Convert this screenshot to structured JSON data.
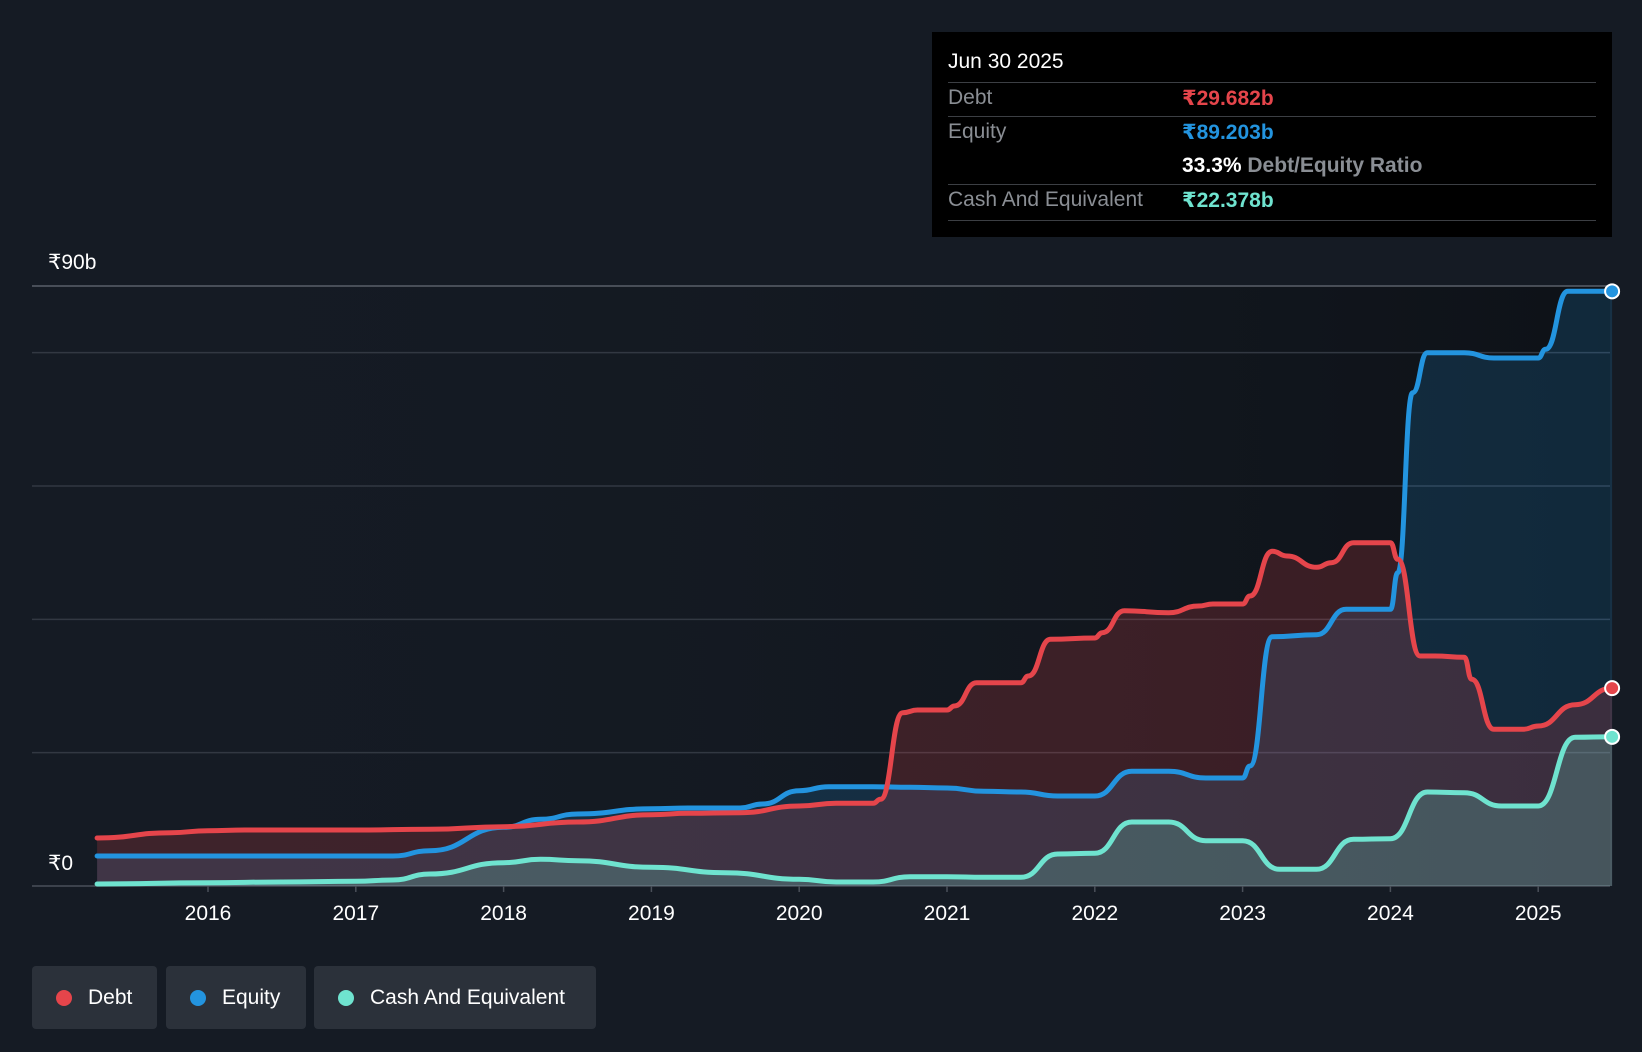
{
  "tooltip": {
    "date": "Jun 30 2025",
    "debt_label": "Debt",
    "debt_value": "₹29.682b",
    "equity_label": "Equity",
    "equity_value": "₹89.203b",
    "ratio_value": "33.3%",
    "ratio_label": "Debt/Equity Ratio",
    "cash_label": "Cash And Equivalent",
    "cash_value": "₹22.378b"
  },
  "colors": {
    "debt": "#e5454b",
    "equity": "#2394df",
    "cash": "#6fe3cf",
    "background": "#151b24",
    "grid": "#3a4049"
  },
  "legend": [
    {
      "label": "Debt",
      "color": "#e5454b"
    },
    {
      "label": "Equity",
      "color": "#2394df"
    },
    {
      "label": "Cash And Equivalent",
      "color": "#6fe3cf"
    }
  ],
  "chart_data": {
    "type": "area",
    "title": "",
    "xlabel": "",
    "ylabel": "",
    "ylim": [
      0,
      90
    ],
    "y_tick_labels": {
      "top": "₹90b",
      "bottom": "₹0"
    },
    "xlim": [
      2015.25,
      2025.5
    ],
    "x_ticks": [
      2016,
      2017,
      2018,
      2019,
      2020,
      2021,
      2022,
      2023,
      2024,
      2025
    ],
    "x_tick_labels": [
      "2016",
      "2017",
      "2018",
      "2019",
      "2020",
      "2021",
      "2022",
      "2023",
      "2024",
      "2025"
    ],
    "gridlines": [
      0,
      20,
      40,
      60,
      80,
      90
    ],
    "series": [
      {
        "name": "Debt",
        "points": [
          [
            2015.25,
            7.2
          ],
          [
            2015.75,
            8.0
          ],
          [
            2016.0,
            8.3
          ],
          [
            2016.25,
            8.4
          ],
          [
            2017.0,
            8.4
          ],
          [
            2017.5,
            8.5
          ],
          [
            2018.0,
            8.9
          ],
          [
            2018.5,
            9.6
          ],
          [
            2019.0,
            10.7
          ],
          [
            2019.25,
            10.9
          ],
          [
            2019.6,
            11.0
          ],
          [
            2020.0,
            12.0
          ],
          [
            2020.25,
            12.4
          ],
          [
            2020.5,
            12.4
          ],
          [
            2020.55,
            13.0
          ],
          [
            2020.7,
            26.0
          ],
          [
            2020.8,
            26.4
          ],
          [
            2021.0,
            26.4
          ],
          [
            2021.05,
            27.0
          ],
          [
            2021.2,
            30.5
          ],
          [
            2021.5,
            30.5
          ],
          [
            2021.55,
            31.5
          ],
          [
            2021.7,
            37.0
          ],
          [
            2022.0,
            37.2
          ],
          [
            2022.05,
            38.0
          ],
          [
            2022.2,
            41.3
          ],
          [
            2022.5,
            41.0
          ],
          [
            2022.7,
            42.0
          ],
          [
            2022.8,
            42.3
          ],
          [
            2023.0,
            42.3
          ],
          [
            2023.05,
            43.5
          ],
          [
            2023.2,
            50.2
          ],
          [
            2023.3,
            49.5
          ],
          [
            2023.5,
            47.8
          ],
          [
            2023.6,
            48.5
          ],
          [
            2023.75,
            51.5
          ],
          [
            2024.0,
            51.5
          ],
          [
            2024.05,
            49.0
          ],
          [
            2024.2,
            34.5
          ],
          [
            2024.3,
            34.5
          ],
          [
            2024.5,
            34.3
          ],
          [
            2024.55,
            31.0
          ],
          [
            2024.7,
            23.5
          ],
          [
            2024.9,
            23.5
          ],
          [
            2025.0,
            24.0
          ],
          [
            2025.25,
            27.2
          ],
          [
            2025.5,
            29.682
          ]
        ]
      },
      {
        "name": "Equity",
        "points": [
          [
            2015.25,
            4.5
          ],
          [
            2016.0,
            4.5
          ],
          [
            2017.0,
            4.5
          ],
          [
            2017.25,
            4.5
          ],
          [
            2017.5,
            5.3
          ],
          [
            2018.0,
            8.8
          ],
          [
            2018.25,
            10.0
          ],
          [
            2018.5,
            10.8
          ],
          [
            2019.0,
            11.6
          ],
          [
            2019.25,
            11.7
          ],
          [
            2019.6,
            11.7
          ],
          [
            2019.75,
            12.3
          ],
          [
            2020.0,
            14.3
          ],
          [
            2020.2,
            14.9
          ],
          [
            2020.5,
            14.9
          ],
          [
            2020.75,
            14.8
          ],
          [
            2021.0,
            14.7
          ],
          [
            2021.25,
            14.2
          ],
          [
            2021.5,
            14.1
          ],
          [
            2021.75,
            13.5
          ],
          [
            2022.0,
            13.5
          ],
          [
            2022.25,
            17.2
          ],
          [
            2022.5,
            17.2
          ],
          [
            2022.75,
            16.2
          ],
          [
            2023.0,
            16.2
          ],
          [
            2023.05,
            18.0
          ],
          [
            2023.2,
            37.4
          ],
          [
            2023.5,
            37.7
          ],
          [
            2023.7,
            41.5
          ],
          [
            2024.0,
            41.5
          ],
          [
            2024.05,
            47.0
          ],
          [
            2024.15,
            74.0
          ],
          [
            2024.25,
            80.0
          ],
          [
            2024.5,
            80.0
          ],
          [
            2024.7,
            79.2
          ],
          [
            2025.0,
            79.2
          ],
          [
            2025.05,
            80.5
          ],
          [
            2025.2,
            89.2
          ],
          [
            2025.5,
            89.203
          ]
        ]
      },
      {
        "name": "Cash And Equivalent",
        "points": [
          [
            2015.25,
            0.3
          ],
          [
            2016.0,
            0.5
          ],
          [
            2016.5,
            0.6
          ],
          [
            2017.0,
            0.7
          ],
          [
            2017.25,
            0.9
          ],
          [
            2017.5,
            1.8
          ],
          [
            2018.0,
            3.5
          ],
          [
            2018.25,
            4.0
          ],
          [
            2018.5,
            3.8
          ],
          [
            2019.0,
            2.8
          ],
          [
            2019.5,
            2.0
          ],
          [
            2020.0,
            1.0
          ],
          [
            2020.25,
            0.6
          ],
          [
            2020.5,
            0.6
          ],
          [
            2020.75,
            1.4
          ],
          [
            2021.0,
            1.4
          ],
          [
            2021.25,
            1.3
          ],
          [
            2021.5,
            1.3
          ],
          [
            2021.75,
            4.8
          ],
          [
            2022.0,
            4.9
          ],
          [
            2022.25,
            9.6
          ],
          [
            2022.5,
            9.6
          ],
          [
            2022.75,
            6.8
          ],
          [
            2023.0,
            6.8
          ],
          [
            2023.25,
            2.5
          ],
          [
            2023.5,
            2.5
          ],
          [
            2023.75,
            7.0
          ],
          [
            2024.0,
            7.1
          ],
          [
            2024.25,
            14.1
          ],
          [
            2024.5,
            14.0
          ],
          [
            2024.75,
            12.0
          ],
          [
            2025.0,
            12.0
          ],
          [
            2025.25,
            22.3
          ],
          [
            2025.5,
            22.378
          ]
        ]
      }
    ]
  }
}
